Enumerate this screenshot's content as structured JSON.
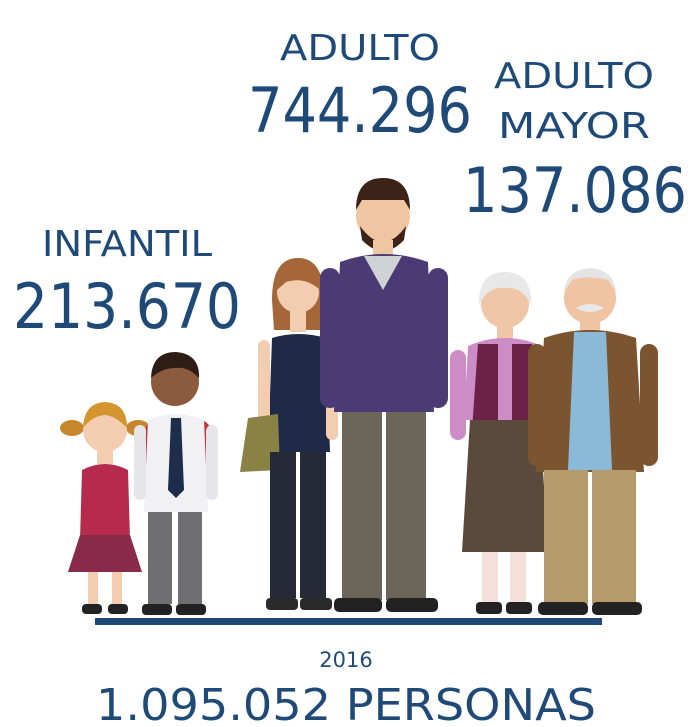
{
  "groups": [
    {
      "label_lines": [
        "INFANTIL"
      ],
      "count": "213.670"
    },
    {
      "label_lines": [
        "ADULTO"
      ],
      "count": "744.296"
    },
    {
      "label_lines": [
        "ADULTO",
        "MAYOR"
      ],
      "count": "137.086"
    }
  ],
  "footer": {
    "year": "2016",
    "total": "1.095.052 PERSONAS"
  }
}
